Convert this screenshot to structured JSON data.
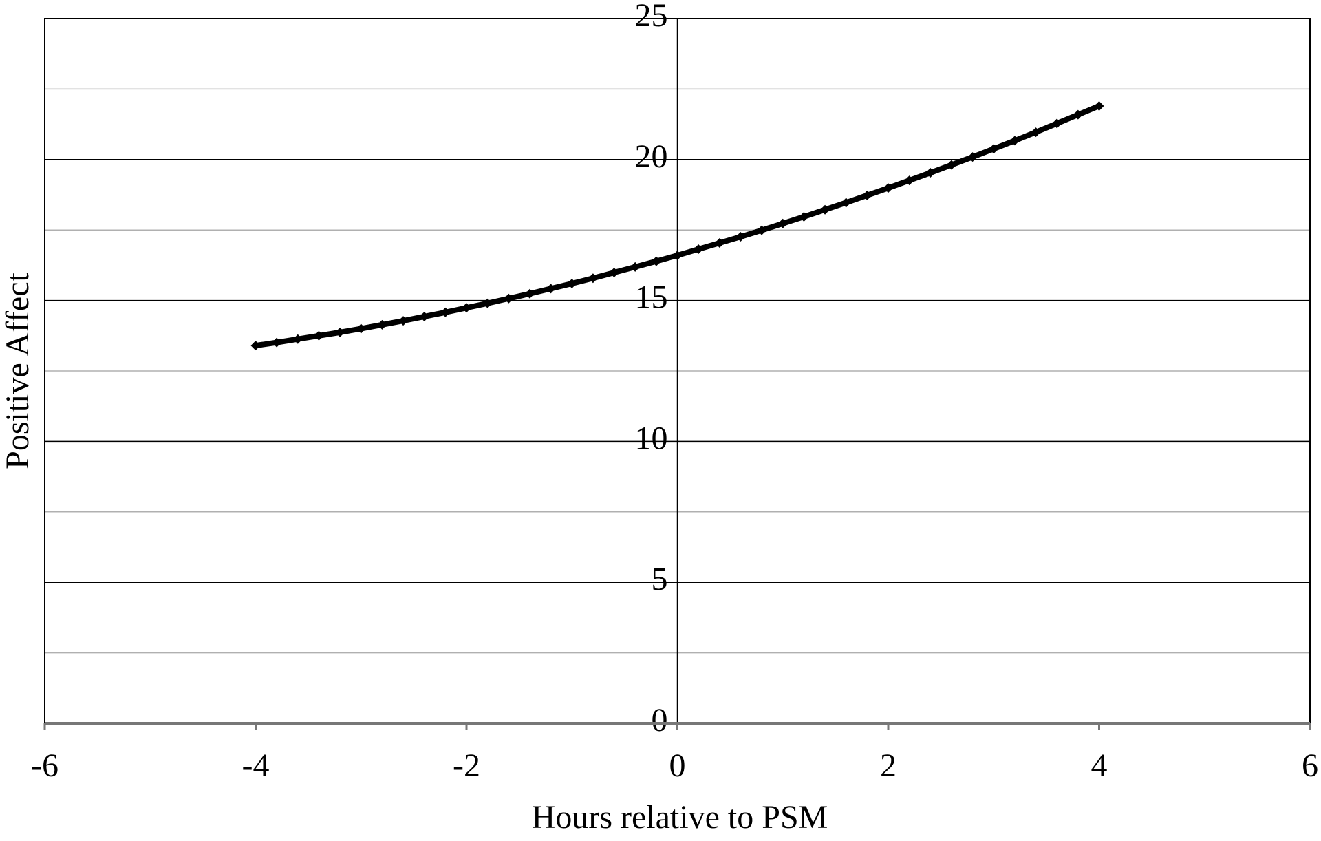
{
  "chart_data": {
    "type": "line",
    "x_label": "Hours relative to PSM",
    "y_label": "Positive Affect",
    "x": [
      -4,
      -3.8,
      -3.6,
      -3.4,
      -3.2,
      -3,
      -2.8,
      -2.6,
      -2.4,
      -2.2,
      -2,
      -1.8,
      -1.6,
      -1.4,
      -1.2,
      -1,
      -0.8,
      -0.6,
      -0.4,
      -0.2,
      0,
      0.2,
      0.4,
      0.6,
      0.8,
      1,
      1.2,
      1.4,
      1.6,
      1.8,
      2,
      2.2,
      2.4,
      2.6,
      2.8,
      3,
      3.2,
      3.4,
      3.6,
      3.8,
      4
    ],
    "series": [
      {
        "color": "#000000",
        "marker": "diamond",
        "values": [
          13.4,
          13.51,
          13.63,
          13.75,
          13.87,
          14.0,
          14.14,
          14.28,
          14.43,
          14.58,
          14.74,
          14.9,
          15.07,
          15.24,
          15.42,
          15.6,
          15.79,
          15.99,
          16.19,
          16.39,
          16.6,
          16.82,
          17.04,
          17.26,
          17.49,
          17.73,
          17.97,
          18.22,
          18.47,
          18.73,
          18.99,
          19.26,
          19.53,
          19.81,
          20.09,
          20.38,
          20.67,
          20.97,
          21.28,
          21.59,
          21.9
        ]
      }
    ],
    "xlim": [
      -6,
      6
    ],
    "xticks": [
      -6,
      -4,
      -2,
      0,
      2,
      4,
      6
    ],
    "ylim": [
      0,
      25
    ],
    "yticks": [
      0,
      5,
      10,
      15,
      20,
      25
    ],
    "yminorgrid": [
      2.5,
      7.5,
      12.5,
      17.5,
      22.5
    ],
    "grid": true
  }
}
